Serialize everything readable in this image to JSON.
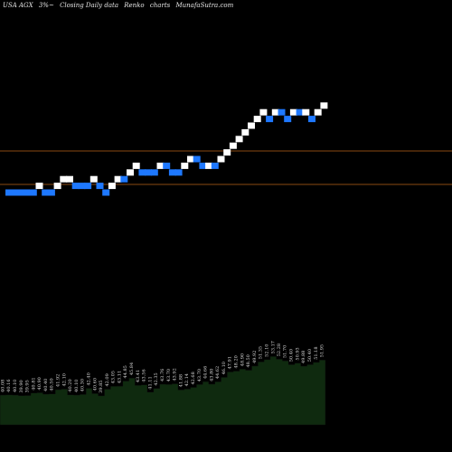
{
  "header": {
    "symbol": "USA AGX",
    "change": "3%~",
    "chart_type": "Closing Daily data",
    "style": "Renko",
    "word": "charts",
    "site": "MunafaSutra.com"
  },
  "colors": {
    "background": "#000000",
    "up_brick": "#ffffff",
    "down_brick": "#1e78ff",
    "reference_line": "#8a4a12",
    "area_fill": "#0f2a0f",
    "area_stroke": "#0a0a0a",
    "label_text": "#d9d9d9"
  },
  "chart_data": [
    {
      "type": "renko",
      "reference_lines": [
        0.3,
        0.6
      ],
      "bricks": [
        {
          "level": 0,
          "direction": "down"
        },
        {
          "level": 0,
          "direction": "down"
        },
        {
          "level": 0,
          "direction": "down"
        },
        {
          "level": 0,
          "direction": "down"
        },
        {
          "level": 0,
          "direction": "down"
        },
        {
          "level": 1,
          "direction": "up"
        },
        {
          "level": 0,
          "direction": "down"
        },
        {
          "level": 0,
          "direction": "down"
        },
        {
          "level": 1,
          "direction": "up"
        },
        {
          "level": 2,
          "direction": "up"
        },
        {
          "level": 2,
          "direction": "up"
        },
        {
          "level": 1,
          "direction": "down"
        },
        {
          "level": 1,
          "direction": "down"
        },
        {
          "level": 1,
          "direction": "down"
        },
        {
          "level": 2,
          "direction": "up"
        },
        {
          "level": 1,
          "direction": "down"
        },
        {
          "level": 0,
          "direction": "down"
        },
        {
          "level": 1,
          "direction": "up"
        },
        {
          "level": 2,
          "direction": "up"
        },
        {
          "level": 2,
          "direction": "down"
        },
        {
          "level": 3,
          "direction": "up"
        },
        {
          "level": 4,
          "direction": "up"
        },
        {
          "level": 3,
          "direction": "down"
        },
        {
          "level": 3,
          "direction": "down"
        },
        {
          "level": 3,
          "direction": "down"
        },
        {
          "level": 4,
          "direction": "up"
        },
        {
          "level": 4,
          "direction": "down"
        },
        {
          "level": 3,
          "direction": "down"
        },
        {
          "level": 3,
          "direction": "down"
        },
        {
          "level": 4,
          "direction": "up"
        },
        {
          "level": 5,
          "direction": "up"
        },
        {
          "level": 5,
          "direction": "down"
        },
        {
          "level": 4,
          "direction": "down"
        },
        {
          "level": 4,
          "direction": "up"
        },
        {
          "level": 4,
          "direction": "down"
        },
        {
          "level": 5,
          "direction": "up"
        },
        {
          "level": 6,
          "direction": "up"
        },
        {
          "level": 7,
          "direction": "up"
        },
        {
          "level": 8,
          "direction": "up"
        },
        {
          "level": 9,
          "direction": "up"
        },
        {
          "level": 10,
          "direction": "up"
        },
        {
          "level": 11,
          "direction": "up"
        },
        {
          "level": 12,
          "direction": "up"
        },
        {
          "level": 11,
          "direction": "down"
        },
        {
          "level": 12,
          "direction": "up"
        },
        {
          "level": 12,
          "direction": "down"
        },
        {
          "level": 11,
          "direction": "down"
        },
        {
          "level": 12,
          "direction": "up"
        },
        {
          "level": 12,
          "direction": "down"
        },
        {
          "level": 12,
          "direction": "up"
        },
        {
          "level": 11,
          "direction": "down"
        },
        {
          "level": 12,
          "direction": "up"
        },
        {
          "level": 13,
          "direction": "up"
        }
      ]
    },
    {
      "type": "area",
      "label_precision": 2,
      "x": [
        0,
        1,
        2,
        3,
        4,
        5,
        6,
        7,
        8,
        9,
        10,
        11,
        12,
        13,
        14,
        15,
        16,
        17,
        18,
        19,
        20,
        21,
        22,
        23,
        24,
        25,
        26,
        27,
        28,
        29,
        30,
        31,
        32,
        33,
        34,
        35,
        36,
        37,
        38,
        39,
        40,
        41,
        42,
        43,
        44,
        45,
        46,
        47,
        48,
        49,
        50,
        51,
        52
      ],
      "values": [
        40.08,
        40.16,
        40.1,
        39.9,
        39.95,
        40.81,
        40.9,
        40.4,
        40.5,
        41.92,
        42.1,
        40.2,
        40.1,
        40.3,
        42.4,
        40.6,
        39.85,
        42.09,
        43.05,
        43.11,
        44.85,
        45.84,
        43.41,
        43.56,
        41.11,
        42.35,
        43.76,
        43.7,
        43.92,
        41.88,
        42.14,
        42.68,
        43.7,
        44.66,
        43.8,
        44.62,
        46.1,
        47.91,
        48.2,
        48.9,
        48.5,
        49.92,
        51.35,
        52.1,
        53.17,
        52.28,
        51.7,
        50.4,
        50.93,
        49.88,
        50.4,
        51.18,
        51.95
      ],
      "ylim": [
        30,
        56
      ]
    }
  ]
}
